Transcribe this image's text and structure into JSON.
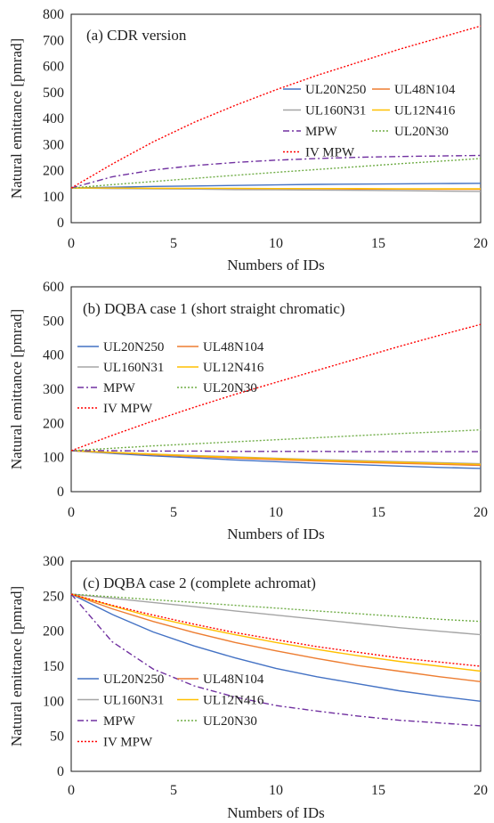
{
  "series_styles": [
    {
      "name": "UL20N250",
      "color": "#4472C4",
      "dash": ""
    },
    {
      "name": "UL48N104",
      "color": "#ED7D31",
      "dash": ""
    },
    {
      "name": "UL160N31",
      "color": "#A5A5A5",
      "dash": ""
    },
    {
      "name": "UL12N416",
      "color": "#FFC000",
      "dash": ""
    },
    {
      "name": "MPW",
      "color": "#7030A0",
      "dash": "7,3,2,3"
    },
    {
      "name": "UL20N30",
      "color": "#70AD47",
      "dash": "2,2"
    },
    {
      "name": "IV MPW",
      "color": "#FF0000",
      "dash": "2,2"
    }
  ],
  "chart_data": [
    {
      "type": "line",
      "title": "(a) CDR version",
      "xlabel": "Numbers of IDs",
      "ylabel": "Natural emittance [pmrad]",
      "xlim": [
        0,
        20
      ],
      "ylim": [
        0,
        800
      ],
      "xticks": [
        "0",
        "5",
        "10",
        "15",
        "20"
      ],
      "yticks": [
        "0",
        "100",
        "200",
        "300",
        "400",
        "500",
        "600",
        "700",
        "800"
      ],
      "legend": "right",
      "x": [
        0,
        2,
        4,
        6,
        8,
        10,
        12,
        14,
        16,
        18,
        20
      ],
      "series": [
        {
          "name": "UL20N250",
          "values": [
            133,
            136,
            139,
            141,
            143,
            145,
            147,
            148,
            149,
            150,
            151
          ]
        },
        {
          "name": "UL48N104",
          "values": [
            133,
            132,
            132,
            131,
            131,
            130,
            130,
            129,
            129,
            128,
            128
          ]
        },
        {
          "name": "UL160N31",
          "values": [
            133,
            131,
            130,
            129,
            127,
            126,
            125,
            124,
            123,
            121,
            120
          ]
        },
        {
          "name": "UL12N416",
          "values": [
            133,
            133,
            132,
            132,
            132,
            131,
            131,
            131,
            130,
            130,
            130
          ]
        },
        {
          "name": "MPW",
          "values": [
            133,
            176,
            202,
            219,
            231,
            240,
            246,
            251,
            254,
            256,
            258
          ]
        },
        {
          "name": "UL20N30",
          "values": [
            133,
            146,
            158,
            170,
            182,
            193,
            204,
            215,
            226,
            236,
            246
          ]
        },
        {
          "name": "IV MPW",
          "values": [
            133,
            225,
            310,
            385,
            450,
            510,
            565,
            615,
            665,
            710,
            755
          ]
        }
      ]
    },
    {
      "type": "line",
      "title": "(b) DQBA case 1 (short straight  chromatic)",
      "xlabel": "Numbers of IDs",
      "ylabel": "Natural emittance [pmrad]",
      "xlim": [
        0,
        20
      ],
      "ylim": [
        0,
        600
      ],
      "xticks": [
        "0",
        "5",
        "10",
        "15",
        "20"
      ],
      "yticks": [
        "0",
        "100",
        "200",
        "300",
        "400",
        "500",
        "600"
      ],
      "legend": "top-left",
      "x": [
        0,
        2,
        4,
        6,
        8,
        10,
        12,
        14,
        16,
        18,
        20
      ],
      "series": [
        {
          "name": "UL20N250",
          "values": [
            120,
            112,
            105,
            99,
            93,
            88,
            83,
            79,
            75,
            71,
            68
          ]
        },
        {
          "name": "UL48N104",
          "values": [
            120,
            114,
            108,
            103,
            98,
            94,
            90,
            86,
            83,
            80,
            77
          ]
        },
        {
          "name": "UL160N31",
          "values": [
            120,
            115,
            110,
            106,
            102,
            98,
            94,
            91,
            88,
            85,
            82
          ]
        },
        {
          "name": "UL12N416",
          "values": [
            120,
            115,
            110,
            105,
            101,
            97,
            93,
            89,
            86,
            83,
            80
          ]
        },
        {
          "name": "MPW",
          "values": [
            120,
            120,
            119,
            119,
            118,
            118,
            118,
            117,
            117,
            117,
            117
          ]
        },
        {
          "name": "UL20N30",
          "values": [
            120,
            127,
            134,
            140,
            146,
            152,
            158,
            164,
            170,
            175,
            181
          ]
        },
        {
          "name": "IV MPW",
          "values": [
            120,
            165,
            207,
            247,
            285,
            320,
            355,
            390,
            425,
            458,
            490
          ]
        }
      ]
    },
    {
      "type": "line",
      "title": "(c) DQBA case 2 (complete achromat)",
      "xlabel": "Numbers of IDs",
      "ylabel": "Natural emittance [pmrad]",
      "xlim": [
        0,
        20
      ],
      "ylim": [
        0,
        300
      ],
      "xticks": [
        "0",
        "5",
        "10",
        "15",
        "20"
      ],
      "yticks": [
        "0",
        "50",
        "100",
        "150",
        "200",
        "250",
        "300"
      ],
      "legend": "bottom-left",
      "x": [
        0,
        2,
        4,
        6,
        8,
        10,
        12,
        14,
        16,
        18,
        20
      ],
      "series": [
        {
          "name": "UL20N250",
          "values": [
            253,
            224,
            199,
            179,
            162,
            147,
            135,
            125,
            115,
            107,
            100
          ]
        },
        {
          "name": "UL48N104",
          "values": [
            253,
            232,
            214,
            198,
            184,
            172,
            161,
            151,
            143,
            135,
            128
          ]
        },
        {
          "name": "UL160N31",
          "values": [
            253,
            247,
            241,
            235,
            229,
            223,
            217,
            211,
            205,
            200,
            195
          ]
        },
        {
          "name": "UL12N416",
          "values": [
            253,
            236,
            220,
            207,
            195,
            184,
            174,
            165,
            157,
            150,
            143
          ]
        },
        {
          "name": "MPW",
          "values": [
            253,
            185,
            146,
            122,
            106,
            94,
            86,
            79,
            73,
            69,
            65
          ]
        },
        {
          "name": "UL20N30",
          "values": [
            253,
            249,
            245,
            241,
            237,
            233,
            229,
            225,
            221,
            217,
            214
          ]
        },
        {
          "name": "IV MPW",
          "values": [
            253,
            237,
            223,
            210,
            198,
            188,
            178,
            170,
            162,
            156,
            150
          ]
        }
      ]
    }
  ]
}
